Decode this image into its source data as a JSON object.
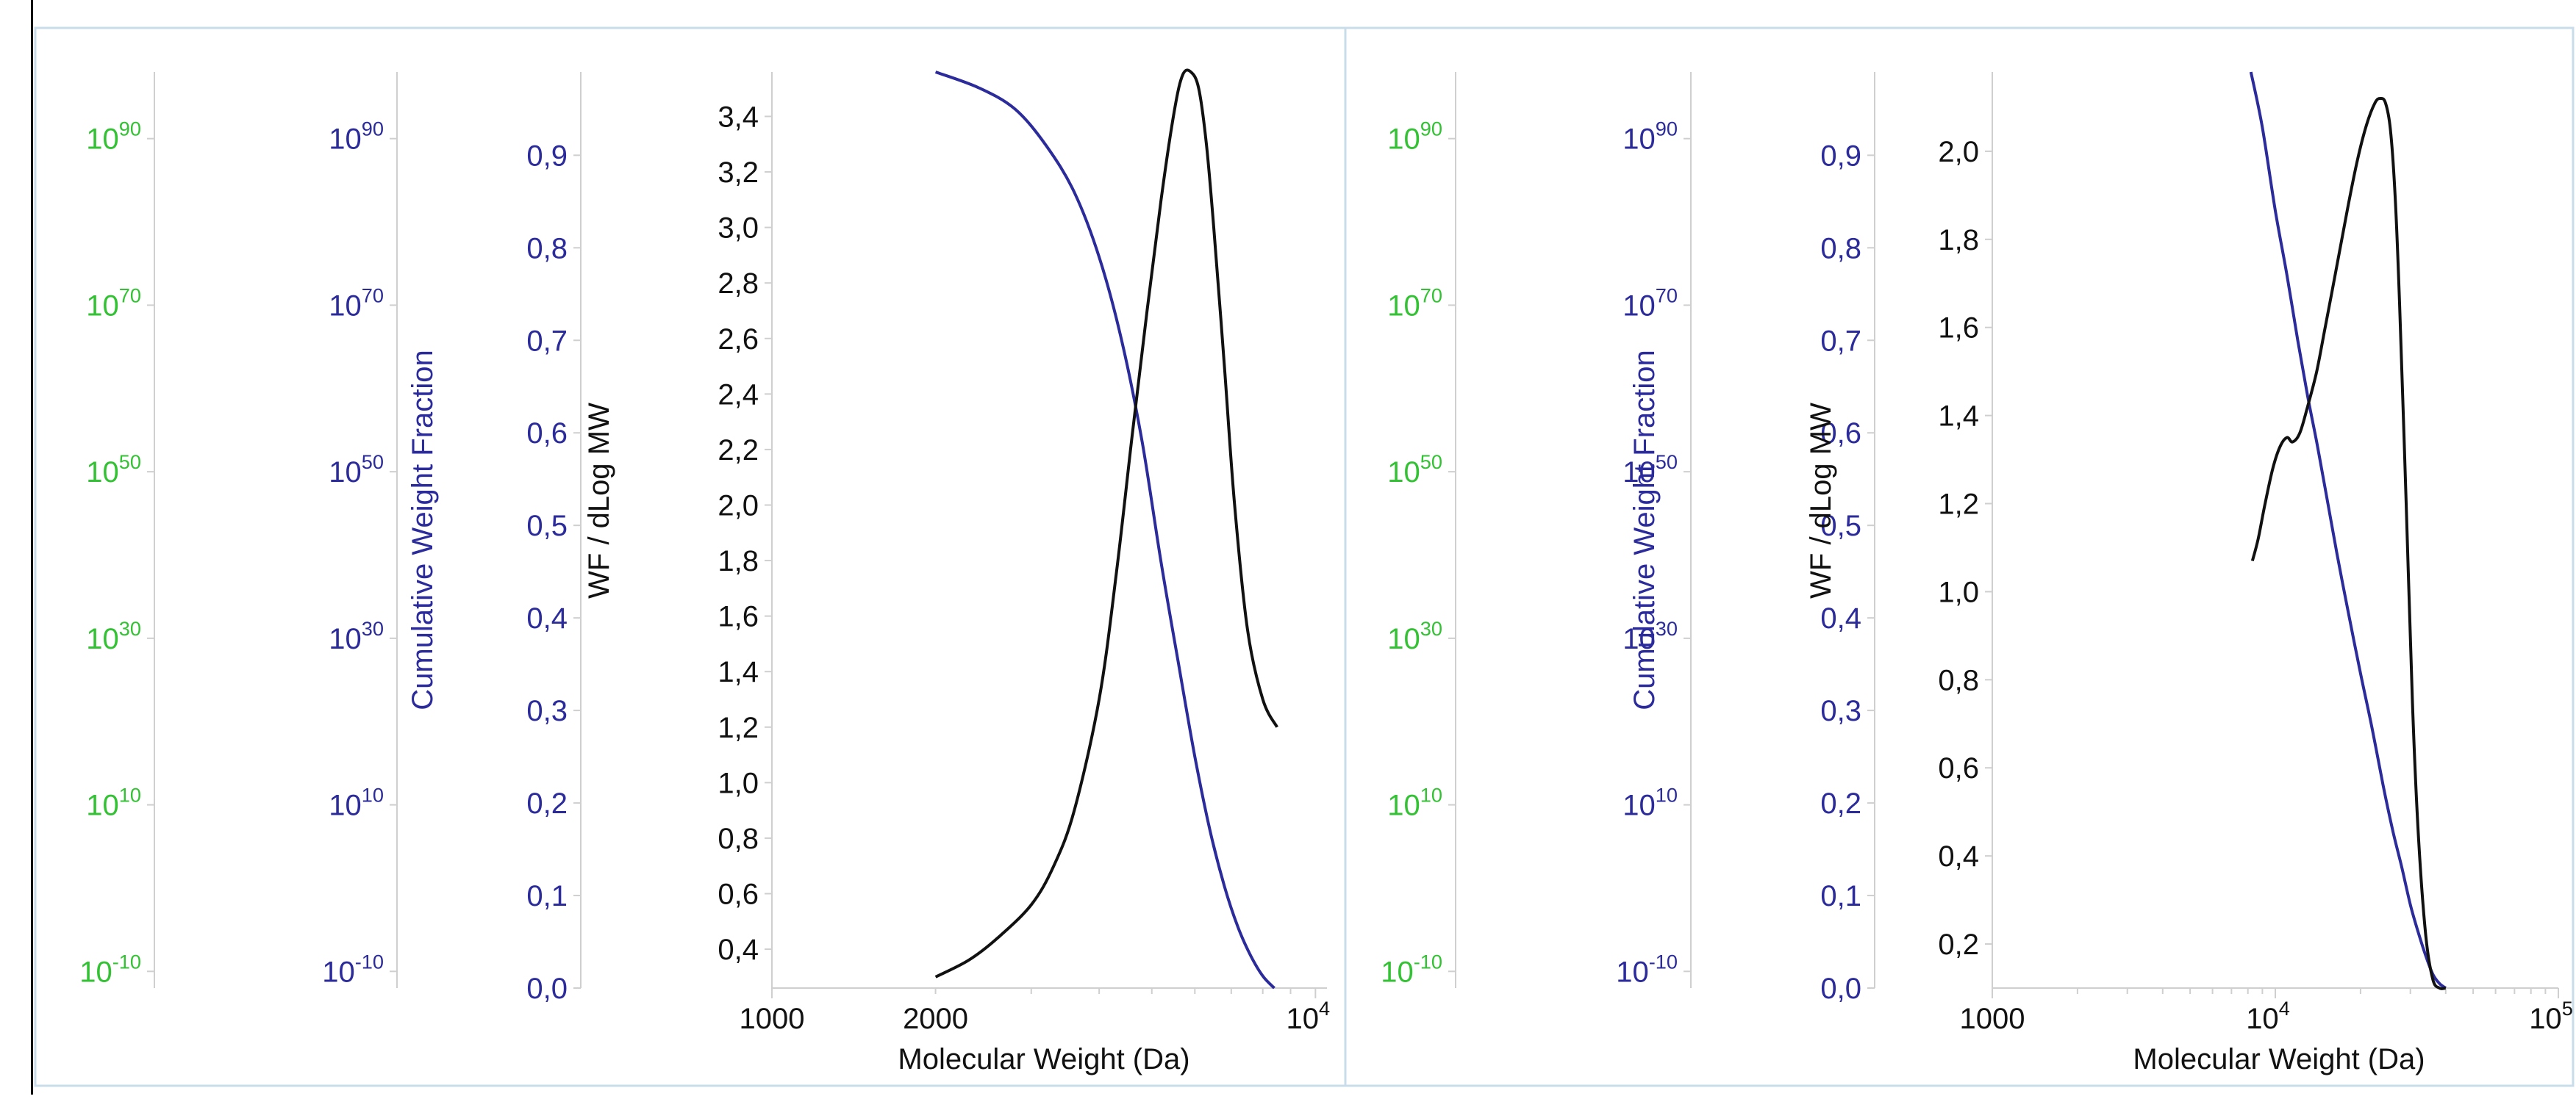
{
  "colors": {
    "green_axis": "#33c233",
    "blue_axis": "#2b2b9b",
    "curve_cumulative": "#2b2b9b",
    "curve_distribution": "#111111",
    "frame": "#c8dcea",
    "axis_line": "#cfcfcf"
  },
  "chart_data": [
    {
      "type": "line",
      "panel": "left",
      "xlabel": "Molecular Weight (Da)",
      "xscale": "log",
      "xlim": [
        1000,
        10500
      ],
      "x_tick_labels": [
        "1000",
        "2000",
        "10^4"
      ],
      "left_axes": [
        {
          "color": "green",
          "scale": "log",
          "tick_labels": [
            "10^90",
            "10^70",
            "10^50",
            "10^30",
            "10^10",
            "10^-10"
          ]
        },
        {
          "color": "blue",
          "label": "Cumulative Weight Fraction",
          "scale": "log",
          "tick_labels": [
            "10^90",
            "10^70",
            "10^50",
            "10^30",
            "10^10",
            "10^-10"
          ]
        },
        {
          "color": "blue",
          "label": "Cumulative Weight Fraction",
          "ylim": [
            0,
            0.99
          ],
          "tick_labels": [
            "0,9",
            "0,8",
            "0,7",
            "0,6",
            "0,5",
            "0,4",
            "0,3",
            "0,2",
            "0,1",
            "0,0"
          ]
        },
        {
          "color": "black",
          "label": "WF / dLog MW",
          "ylim": [
            0.26,
            3.56
          ],
          "tick_labels": [
            "3,4",
            "3,2",
            "3,0",
            "2,8",
            "2,6",
            "2,4",
            "2,2",
            "2,0",
            "1,8",
            "1,6",
            "1,4",
            "1,2",
            "1,0",
            "0,8",
            "0,6",
            "0,4"
          ]
        }
      ],
      "series": [
        {
          "axis": "cumulative",
          "x": [
            2000,
            2400,
            2800,
            3200,
            3600,
            4000,
            4400,
            4800,
            5200,
            5600,
            6000,
            6400,
            6800,
            7200,
            7600,
            8000,
            8400
          ],
          "y": [
            0.99,
            0.973,
            0.95,
            0.91,
            0.86,
            0.79,
            0.7,
            0.59,
            0.46,
            0.35,
            0.25,
            0.17,
            0.11,
            0.066,
            0.035,
            0.013,
            0.0
          ]
        },
        {
          "axis": "distribution",
          "x": [
            2000,
            2300,
            2600,
            3000,
            3300,
            3600,
            4000,
            4300,
            4600,
            4900,
            5200,
            5500,
            5700,
            5900,
            6100,
            6300,
            6500,
            6800,
            7100,
            7500,
            8000,
            8500
          ],
          "y": [
            0.3,
            0.36,
            0.44,
            0.56,
            0.7,
            0.9,
            1.3,
            1.75,
            2.25,
            2.7,
            3.1,
            3.42,
            3.55,
            3.56,
            3.5,
            3.3,
            3.0,
            2.5,
            2.0,
            1.55,
            1.3,
            1.2
          ]
        }
      ]
    },
    {
      "type": "line",
      "panel": "right",
      "xlabel": "Molecular Weight (Da)",
      "xscale": "log",
      "xlim": [
        1000,
        100000
      ],
      "x_tick_labels": [
        "1000",
        "10^4",
        "10^5"
      ],
      "left_axes": [
        {
          "color": "green",
          "scale": "log",
          "tick_labels": [
            "10^90",
            "10^70",
            "10^50",
            "10^30",
            "10^10",
            "10^-10"
          ]
        },
        {
          "color": "blue",
          "label": "Cumulative Weight Fraction",
          "scale": "log",
          "tick_labels": [
            "10^90",
            "10^70",
            "10^50",
            "10^30",
            "10^10",
            "10^-10"
          ]
        },
        {
          "color": "blue",
          "label": "Cumulative Weight Fraction",
          "ylim": [
            0,
            0.99
          ],
          "tick_labels": [
            "0,9",
            "0,8",
            "0,7",
            "0,6",
            "0,5",
            "0,4",
            "0,3",
            "0,2",
            "0,1",
            "0,0"
          ]
        },
        {
          "color": "black",
          "label": "WF / dLog MW",
          "ylim": [
            0.1,
            2.18
          ],
          "tick_labels": [
            "2,0",
            "1,8",
            "1,6",
            "1,4",
            "1,2",
            "1,0",
            "0,8",
            "0,6",
            "0,4",
            "0,2"
          ]
        }
      ],
      "series": [
        {
          "axis": "cumulative",
          "x": [
            8200,
            9000,
            10000,
            11000,
            12000,
            13000,
            14000,
            15000,
            16500,
            18000,
            20000,
            22000,
            24000,
            26000,
            28000,
            30000,
            32000,
            34000,
            36000,
            38000,
            40000
          ],
          "y": [
            0.99,
            0.93,
            0.84,
            0.77,
            0.7,
            0.64,
            0.59,
            0.54,
            0.47,
            0.41,
            0.34,
            0.28,
            0.22,
            0.17,
            0.13,
            0.09,
            0.06,
            0.035,
            0.015,
            0.005,
            0.0
          ]
        },
        {
          "axis": "distribution",
          "x": [
            8300,
            8700,
            9200,
            9800,
            10400,
            11000,
            11500,
            12200,
            13000,
            14000,
            15000,
            16500,
            18000,
            19500,
            21000,
            22500,
            23500,
            24500,
            25500,
            26500,
            27500,
            29000,
            30500,
            32000,
            34000,
            36000,
            38000,
            40000
          ],
          "y": [
            1.07,
            1.12,
            1.2,
            1.28,
            1.33,
            1.35,
            1.34,
            1.36,
            1.42,
            1.5,
            1.6,
            1.74,
            1.87,
            1.98,
            2.06,
            2.11,
            2.12,
            2.11,
            2.05,
            1.9,
            1.65,
            1.2,
            0.75,
            0.45,
            0.22,
            0.12,
            0.1,
            0.1
          ]
        }
      ]
    }
  ]
}
